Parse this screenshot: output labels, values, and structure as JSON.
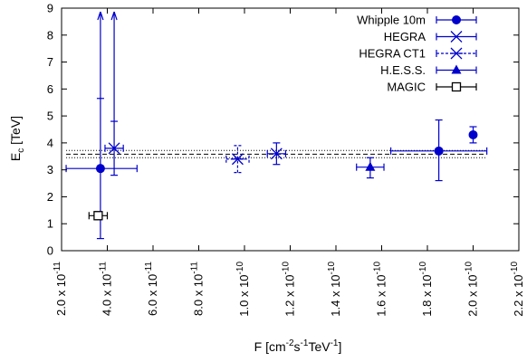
{
  "chart_data": {
    "type": "scatter",
    "xlabel": "F [cm",
    "xlabel_parts": [
      "F [cm",
      "-2",
      "s",
      "-1",
      "TeV",
      "-1",
      "]"
    ],
    "ylabel": "E",
    "ylabel_parts": [
      "E",
      "c",
      " [TeV]"
    ],
    "xlim": [
      2e-11,
      2.2e-10
    ],
    "ylim": [
      0,
      9
    ],
    "x_ticks": [
      {
        "value": 2e-11,
        "mant": "2.0 x 10",
        "exp": "-11"
      },
      {
        "value": 4e-11,
        "mant": "4.0 x 10",
        "exp": "-11"
      },
      {
        "value": 6e-11,
        "mant": "6.0 x 10",
        "exp": "-11"
      },
      {
        "value": 8e-11,
        "mant": "8.0 x 10",
        "exp": "-11"
      },
      {
        "value": 1e-10,
        "mant": "1.0 x 10",
        "exp": "-10"
      },
      {
        "value": 1.2e-10,
        "mant": "1.2 x 10",
        "exp": "-10"
      },
      {
        "value": 1.4e-10,
        "mant": "1.4 x 10",
        "exp": "-10"
      },
      {
        "value": 1.6e-10,
        "mant": "1.6 x 10",
        "exp": "-10"
      },
      {
        "value": 1.8e-10,
        "mant": "1.8 x 10",
        "exp": "-10"
      },
      {
        "value": 2e-10,
        "mant": "2.0 x 10",
        "exp": "-10"
      },
      {
        "value": 2.2e-10,
        "mant": "2.2 x 10",
        "exp": "-10"
      }
    ],
    "y_ticks": [
      "0",
      "1",
      "2",
      "3",
      "4",
      "5",
      "6",
      "7",
      "8",
      "9"
    ],
    "legend_position": "top-right",
    "colors": {
      "series": "#0000cc",
      "magic": "#000000",
      "reference": "#000000"
    },
    "series": [
      {
        "name": "Whipple 10m",
        "marker": "filled-circle",
        "line": "solid",
        "points": [
          {
            "x": 3.7e-11,
            "y": 3.05,
            "xerr": [
              2.2e-11,
              5.3e-11
            ],
            "yerr": [
              0.45,
              5.65
            ],
            "arrow_up": true
          },
          {
            "x": 1.85e-10,
            "y": 3.7,
            "xerr": [
              1.64e-10,
              2.06e-10
            ],
            "yerr": [
              2.6,
              4.85
            ]
          },
          {
            "x": 2e-10,
            "y": 4.3,
            "xerr": null,
            "yerr": [
              4.0,
              4.6
            ]
          }
        ]
      },
      {
        "name": "HEGRA",
        "marker": "x-cross",
        "line": "solid",
        "points": [
          {
            "x": 4.3e-11,
            "y": 3.8,
            "xerr": [
              3.9e-11,
              4.7e-11
            ],
            "yerr": [
              2.8,
              4.8
            ],
            "arrow_up": true
          },
          {
            "x": 1.14e-10,
            "y": 3.6,
            "xerr": [
              1.1e-10,
              1.18e-10
            ],
            "yerr": [
              3.2,
              4.0
            ]
          }
        ]
      },
      {
        "name": "HEGRA CT1",
        "marker": "star",
        "line": "dashed",
        "points": [
          {
            "x": 9.7e-11,
            "y": 3.4,
            "xerr": [
              9.2e-11,
              1.02e-10
            ],
            "yerr": [
              2.9,
              3.9
            ]
          }
        ]
      },
      {
        "name": "H.E.S.S.",
        "marker": "filled-triangle",
        "line": "solid",
        "points": [
          {
            "x": 1.55e-10,
            "y": 3.1,
            "xerr": [
              1.49e-10,
              1.61e-10
            ],
            "yerr": [
              2.7,
              3.45
            ]
          }
        ]
      },
      {
        "name": "MAGIC",
        "marker": "open-square",
        "line": "solid",
        "points": [
          {
            "x": 3.6e-11,
            "y": 1.3,
            "xerr": [
              3.2e-11,
              4e-11
            ],
            "yerr": [
              1.15,
              1.45
            ]
          }
        ]
      }
    ],
    "reference_lines": [
      {
        "y": 3.58,
        "style": "dashed"
      },
      {
        "y": 3.45,
        "style": "dotted"
      },
      {
        "y": 3.72,
        "style": "dotted"
      }
    ]
  }
}
